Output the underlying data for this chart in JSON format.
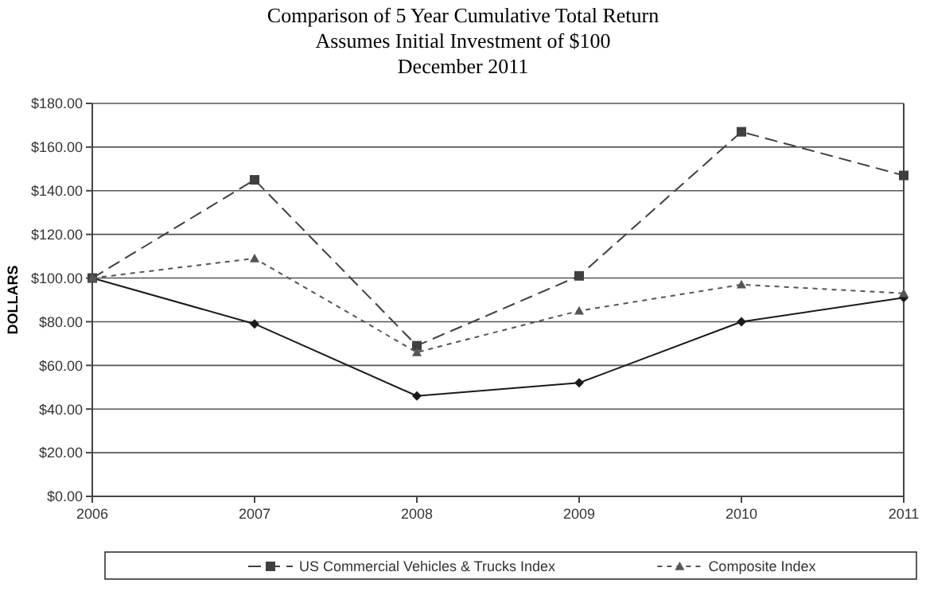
{
  "chart_data": {
    "type": "line",
    "title": "Comparison of 5 Year Cumulative Total Return",
    "subtitle": "Assumes Initial Investment of $100\nDecember 2011",
    "ylabel": "DOLLARS",
    "categories": [
      "2006",
      "2007",
      "2008",
      "2009",
      "2010",
      "2011"
    ],
    "series": [
      {
        "color": "#1a1a1a",
        "marker": "diamond",
        "line_style": "solid",
        "values": [
          100,
          79,
          46,
          52,
          80,
          91
        ]
      },
      {
        "name": "US Commercial Vehicles & Trucks Index",
        "color": "#404040",
        "marker": "square",
        "line_style": "dashed",
        "values": [
          100,
          145,
          69,
          101,
          167,
          147
        ]
      },
      {
        "name": "Composite Index",
        "color": "#555555",
        "marker": "triangle",
        "line_style": "dotted",
        "values": [
          100,
          109,
          66,
          85,
          97,
          93
        ]
      }
    ],
    "ylim": [
      0,
      180
    ],
    "yticks": [
      {
        "value": 0,
        "label": "$0.00"
      },
      {
        "value": 20,
        "label": "$20.00"
      },
      {
        "value": 40,
        "label": "$40.00"
      },
      {
        "value": 60,
        "label": "$60.00"
      },
      {
        "value": 80,
        "label": "$80.00"
      },
      {
        "value": 100,
        "label": "$100.00"
      },
      {
        "value": 120,
        "label": "$120.00"
      },
      {
        "value": 140,
        "label": "$140.00"
      },
      {
        "value": 160,
        "label": "$160.00"
      },
      {
        "value": 180,
        "label": "$180.00"
      }
    ],
    "grid": "y",
    "legend": "bottom"
  }
}
